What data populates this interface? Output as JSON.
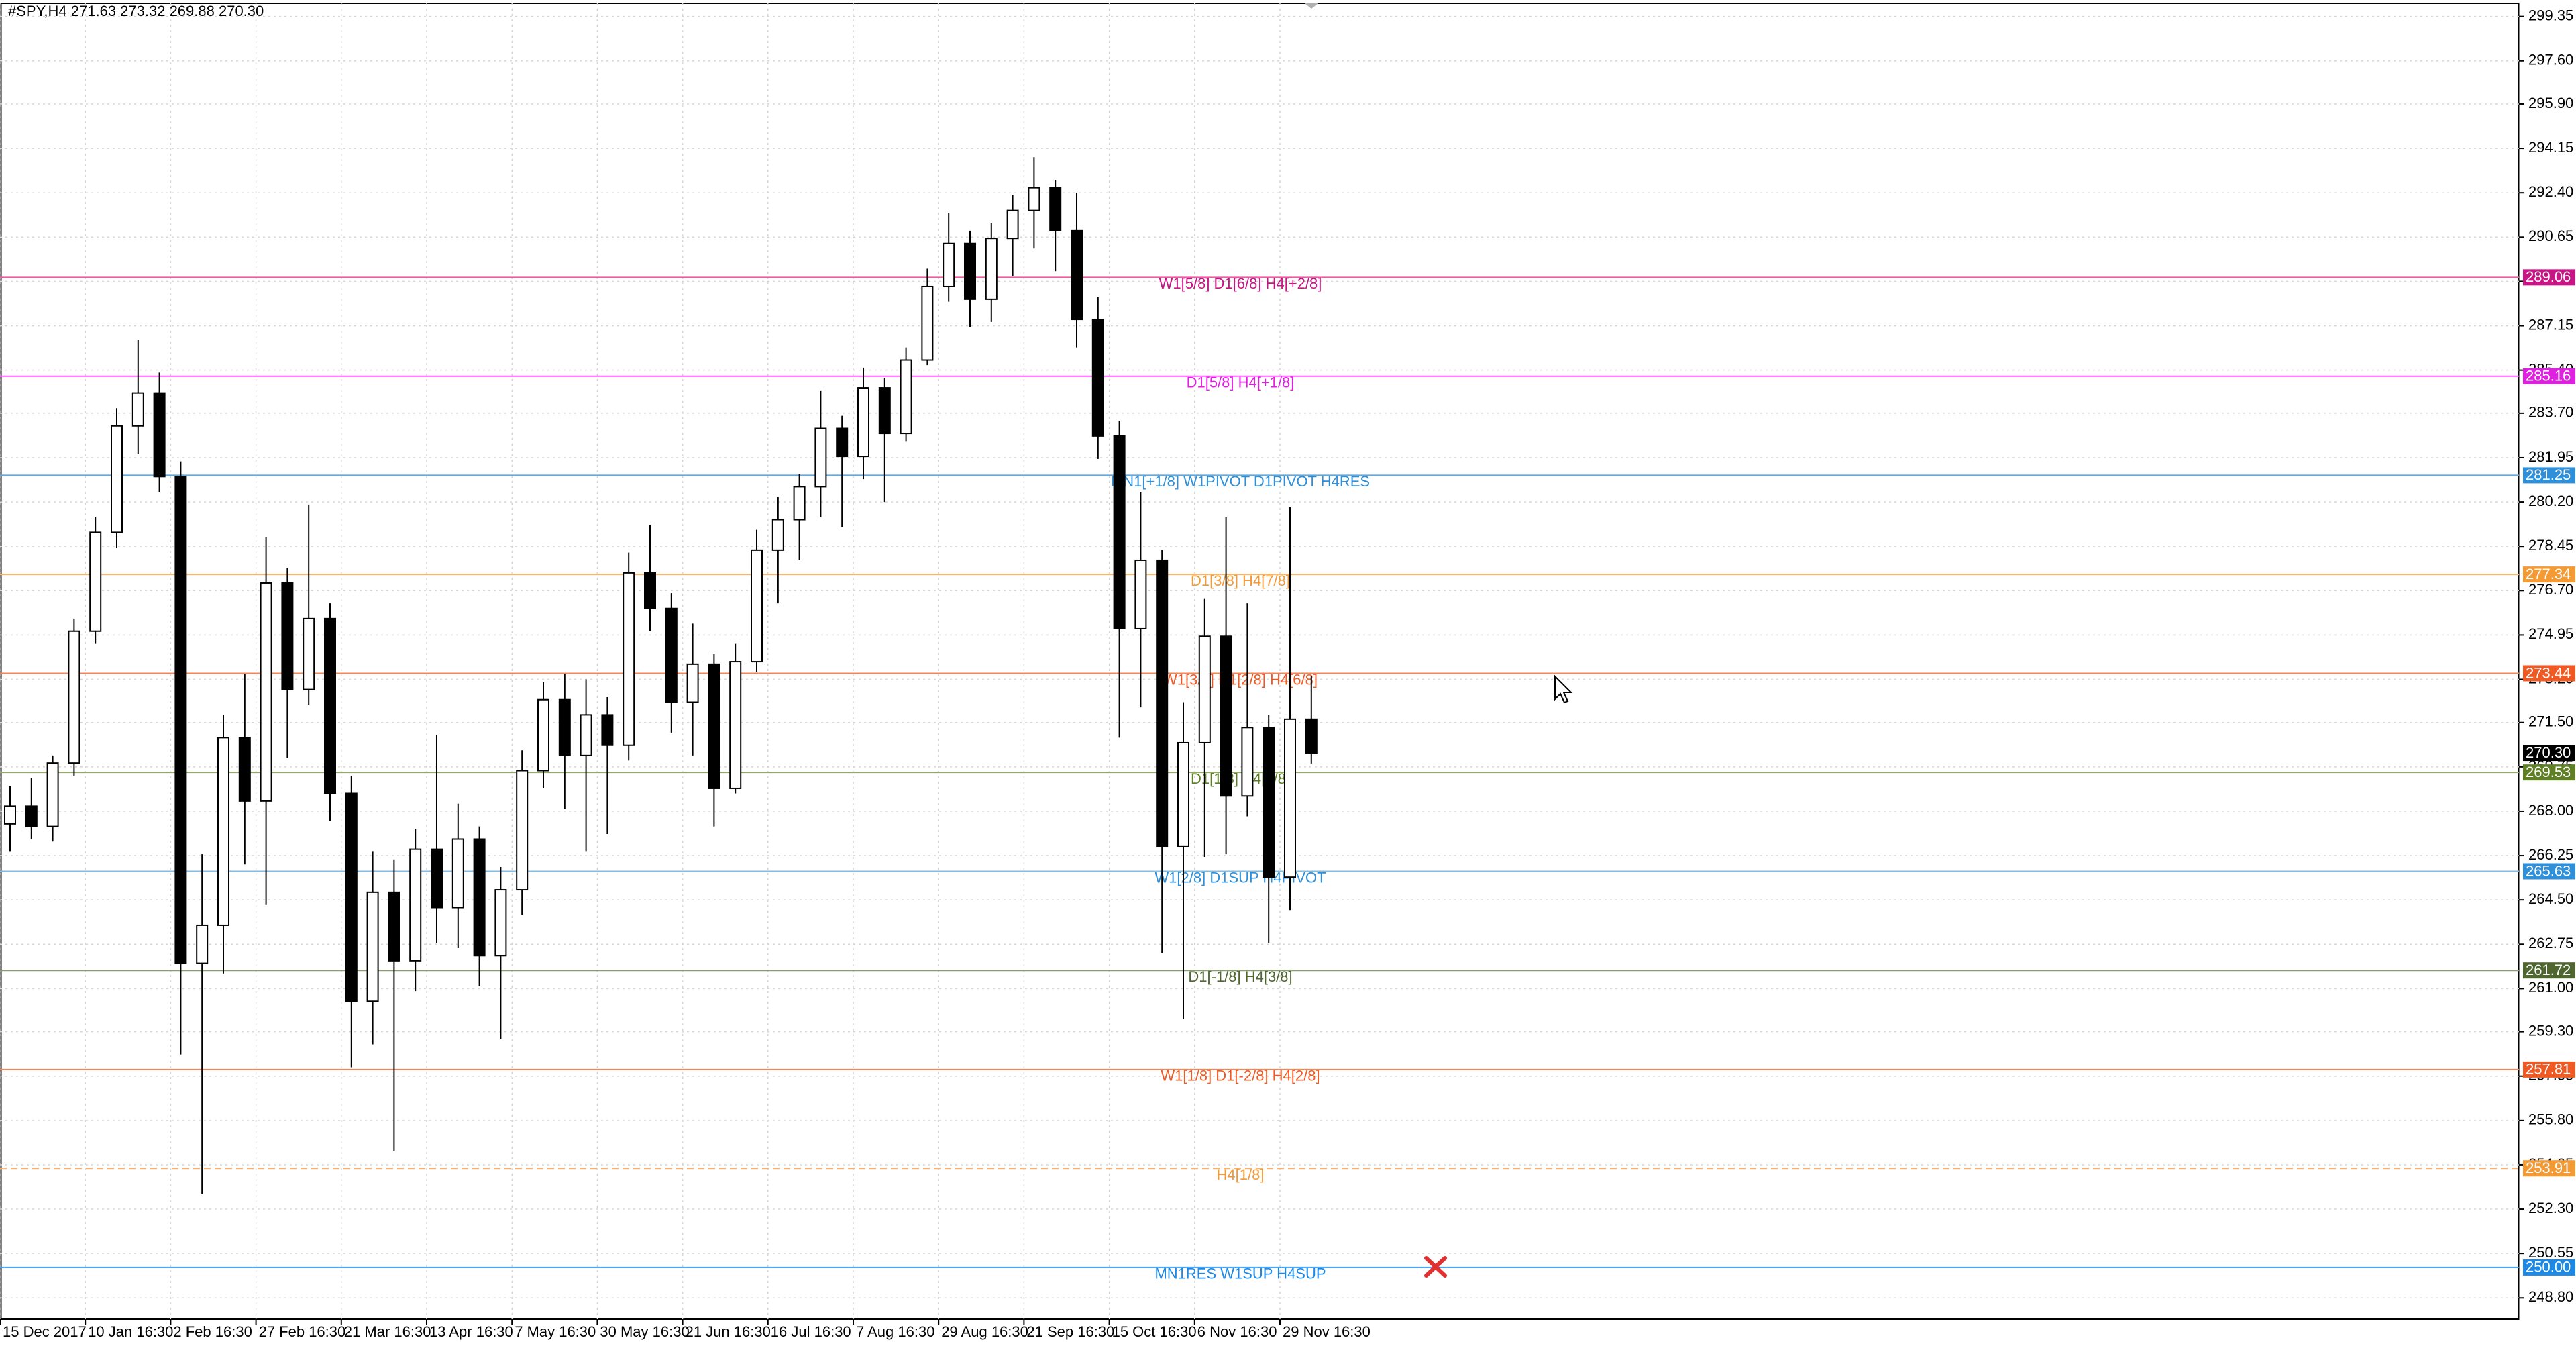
{
  "chart_data": {
    "type": "candlestick",
    "title": "#SPY,H4  271.63 273.32 269.88 270.30",
    "categories": [
      "15 Dec 2017",
      null,
      null,
      null,
      "10 Jan 16:30",
      null,
      null,
      null,
      "2 Feb 16:30",
      null,
      null,
      null,
      "27 Feb 16:30",
      null,
      null,
      null,
      "21 Mar 16:30",
      null,
      null,
      null,
      "13 Apr 16:30",
      null,
      null,
      null,
      "7 May 16:30",
      null,
      null,
      null,
      "30 May 16:30",
      null,
      null,
      null,
      "21 Jun 16:30",
      null,
      null,
      null,
      "16 Jul 16:30",
      null,
      null,
      null,
      "7 Aug 16:30",
      null,
      null,
      null,
      "29 Aug 16:30",
      null,
      null,
      null,
      "21 Sep 16:30",
      null,
      null,
      null,
      "15 Oct 16:30",
      null,
      null,
      null,
      "6 Nov 16:30",
      null,
      null,
      null,
      "29 Nov 16:30",
      null
    ],
    "open": [
      267.5,
      268.2,
      267.4,
      269.9,
      275.1,
      279.0,
      283.2,
      284.5,
      281.2,
      262.0,
      263.5,
      270.9,
      268.4,
      277.0,
      272.8,
      275.6,
      268.7,
      260.5,
      264.8,
      262.1,
      266.5,
      264.2,
      266.9,
      262.3,
      264.9,
      269.6,
      272.4,
      270.2,
      271.8,
      270.6,
      277.4,
      276.0,
      272.3,
      273.8,
      268.9,
      273.9,
      278.3,
      279.5,
      280.8,
      283.1,
      282.0,
      284.7,
      282.9,
      285.8,
      288.7,
      290.4,
      288.2,
      290.6,
      291.7,
      292.6,
      290.9,
      287.4,
      282.8,
      275.2,
      277.9,
      266.6,
      270.7,
      274.9,
      268.6,
      271.3,
      265.4,
      271.63
    ],
    "high": [
      269.0,
      269.3,
      270.2,
      275.6,
      279.6,
      283.9,
      286.6,
      285.3,
      281.8,
      266.3,
      271.8,
      273.4,
      278.8,
      277.6,
      280.1,
      276.2,
      269.4,
      266.4,
      266.1,
      267.3,
      271.0,
      268.3,
      267.4,
      265.8,
      270.4,
      273.1,
      273.4,
      273.2,
      272.5,
      278.2,
      279.3,
      276.6,
      275.4,
      274.2,
      274.6,
      279.1,
      280.4,
      281.3,
      284.6,
      283.6,
      285.5,
      285.1,
      286.3,
      289.4,
      291.6,
      290.9,
      291.2,
      292.3,
      293.8,
      292.9,
      292.4,
      288.3,
      283.4,
      280.6,
      278.3,
      272.3,
      276.4,
      279.6,
      276.2,
      271.8,
      280.0,
      273.32
    ],
    "low": [
      266.4,
      266.9,
      266.8,
      269.4,
      274.6,
      278.4,
      282.1,
      280.6,
      258.4,
      252.9,
      261.6,
      265.9,
      264.3,
      270.1,
      272.2,
      267.6,
      257.9,
      258.8,
      254.6,
      260.9,
      262.8,
      262.6,
      261.1,
      259.0,
      263.9,
      268.9,
      268.1,
      266.4,
      267.1,
      270.0,
      275.1,
      271.1,
      270.2,
      267.4,
      268.7,
      273.5,
      276.2,
      277.9,
      279.6,
      279.2,
      281.1,
      280.2,
      282.6,
      285.6,
      288.1,
      287.1,
      287.3,
      289.1,
      290.2,
      289.3,
      286.3,
      281.9,
      270.9,
      272.1,
      262.4,
      259.8,
      266.2,
      266.3,
      267.8,
      262.8,
      264.1,
      269.88
    ],
    "close": [
      268.2,
      267.4,
      269.9,
      275.1,
      279.0,
      283.2,
      284.5,
      281.2,
      262.0,
      263.5,
      270.9,
      268.4,
      277.0,
      272.8,
      275.6,
      268.7,
      260.5,
      264.8,
      262.1,
      266.5,
      264.2,
      266.9,
      262.3,
      264.9,
      269.6,
      272.4,
      270.2,
      271.8,
      270.6,
      277.4,
      276.0,
      272.3,
      273.8,
      268.9,
      273.9,
      278.3,
      279.5,
      280.8,
      283.1,
      282.0,
      284.7,
      282.9,
      285.8,
      288.7,
      290.4,
      288.2,
      290.6,
      291.7,
      292.6,
      290.9,
      287.4,
      282.8,
      275.2,
      277.9,
      266.6,
      270.7,
      274.9,
      268.6,
      271.3,
      265.4,
      271.63,
      270.3
    ],
    "current_price": {
      "value": 270.3,
      "label": "270.30"
    },
    "levels": [
      {
        "name": "W1[5/8] D1[6/8] H4[+2/8]",
        "value": 289.06,
        "color": "#c71585",
        "line_color": "#ee5aa8"
      },
      {
        "name": "D1[5/8] H4[+1/8]",
        "value": 285.16,
        "color": "#e020e0",
        "line_color": "#ff55ff"
      },
      {
        "name": "MN1[+1/8] W1PIVOT D1PIVOT H4RES",
        "value": 281.25,
        "color": "#2f8fd8",
        "line_color": "#5aaae6"
      },
      {
        "name": "D1[3/8] H4[7/8]",
        "value": 277.34,
        "color": "#f39a35",
        "line_color": "#f8b46a"
      },
      {
        "name": "W1[3/8] D1[2/8] H4[6/8]",
        "value": 273.44,
        "color": "#ef5a24",
        "line_color": "#f38559"
      },
      {
        "name": "D1[1/8] H4[5/8]",
        "value": 269.53,
        "color": "#5f7f24",
        "line_color": "#93a96a"
      },
      {
        "name": "W1[2/8] D1SUP H4PIVOT",
        "value": 265.63,
        "color": "#2f8fd8",
        "line_color": "#7dbde8"
      },
      {
        "name": "D1[-1/8] H4[3/8]",
        "value": 261.72,
        "color": "#4f6630",
        "line_color": "#8a9a72"
      },
      {
        "name": "W1[1/8] D1[-2/8] H4[2/8]",
        "value": 257.81,
        "color": "#ef5a24",
        "line_color": "#f38559"
      },
      {
        "name": "H4[1/8]",
        "value": 253.91,
        "color": "#f39a35",
        "line_color": "#f8b46a",
        "dashed": true
      },
      {
        "name": "MN1RES W1SUP H4SUP",
        "value": 250.0,
        "label": "250.00",
        "color": "#1e88e5",
        "line_color": "#3a98e8"
      }
    ],
    "ylim": [
      247.96,
      299.87
    ],
    "yticks": [
      299.35,
      {
        "value": 297.6,
        "label": "297.60"
      },
      {
        "value": 295.9,
        "label": "295.90"
      },
      294.15,
      {
        "value": 292.4,
        "label": "292.40"
      },
      290.65,
      {
        "value": 288.9,
        "label": "288.90"
      },
      287.15,
      {
        "value": 285.4,
        "label": "285.40"
      },
      {
        "value": 283.7,
        "label": "283.70"
      },
      281.95,
      {
        "value": 280.2,
        "label": "280.20"
      },
      278.45,
      {
        "value": 276.7,
        "label": "276.70"
      },
      274.95,
      {
        "value": 273.2,
        "label": "273.20"
      },
      {
        "value": 271.5,
        "label": "271.50"
      },
      269.75,
      {
        "value": 268.0,
        "label": "268.00"
      },
      266.25,
      {
        "value": 264.5,
        "label": "264.50"
      },
      262.75,
      {
        "value": 261.0,
        "label": "261.00"
      },
      {
        "value": 259.3,
        "label": "259.30"
      },
      257.55,
      {
        "value": 255.8,
        "label": "255.80"
      },
      254.05,
      {
        "value": 252.3,
        "label": "252.30"
      },
      250.55,
      {
        "value": 248.8,
        "label": "248.80"
      }
    ],
    "grid": true
  }
}
